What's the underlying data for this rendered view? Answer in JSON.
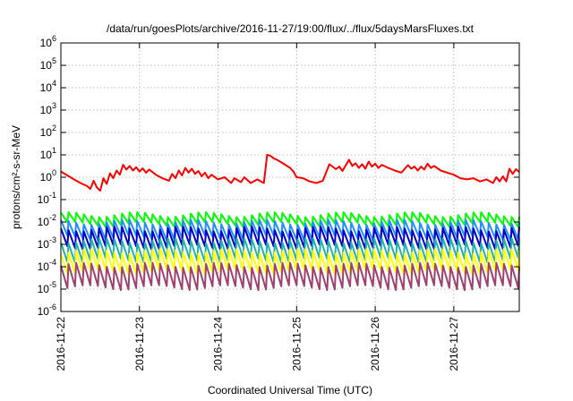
{
  "chart_data": {
    "type": "line",
    "title": "/data/run/goesPlots/archive/2016-11-27/19:00/flux/../flux/5daysMarsFluxes.txt",
    "xlabel": "Coordinated Universal Time (UTC)",
    "ylabel": "protons/cm²-s-sr-MeV",
    "yscale": "log",
    "ylim": [
      1e-06,
      1000000.0
    ],
    "y_tick_exponents": [
      -6,
      -5,
      -4,
      -3,
      -2,
      -1,
      0,
      1,
      2,
      3,
      4,
      5,
      6
    ],
    "xlim": [
      "2016-11-22T00:00",
      "2016-11-27T20:00"
    ],
    "x_ticks": [
      "2016-11-22",
      "2016-11-23",
      "2016-11-24",
      "2016-11-25",
      "2016-11-26",
      "2016-11-27"
    ],
    "grid": true,
    "series_colors": [
      "#ff0000",
      "#00ff00",
      "#1e90ff",
      "#0000cd",
      "#20b2aa",
      "#ffff00",
      "#a0406e"
    ],
    "series": [
      {
        "color": "#ff0000",
        "points": [
          [
            "2016-11-22T00:00",
            1.8
          ],
          [
            "2016-11-22T02:00",
            1.2
          ],
          [
            "2016-11-22T04:00",
            0.8
          ],
          [
            "2016-11-22T06:00",
            0.55
          ],
          [
            "2016-11-22T08:00",
            0.4
          ],
          [
            "2016-11-22T09:00",
            0.3
          ],
          [
            "2016-11-22T10:00",
            0.7
          ],
          [
            "2016-11-22T11:00",
            0.35
          ],
          [
            "2016-11-22T12:00",
            0.25
          ],
          [
            "2016-11-22T13:00",
            0.9
          ],
          [
            "2016-11-22T14:00",
            0.5
          ],
          [
            "2016-11-22T15:00",
            1.5
          ],
          [
            "2016-11-22T16:00",
            0.9
          ],
          [
            "2016-11-22T17:00",
            2.0
          ],
          [
            "2016-11-22T18:00",
            1.3
          ],
          [
            "2016-11-22T19:00",
            3.6
          ],
          [
            "2016-11-22T20:00",
            2.2
          ],
          [
            "2016-11-22T21:00",
            3.2
          ],
          [
            "2016-11-22T22:00",
            2.0
          ],
          [
            "2016-11-22T23:00",
            2.8
          ],
          [
            "2016-11-23T00:00",
            1.8
          ],
          [
            "2016-11-23T01:00",
            2.5
          ],
          [
            "2016-11-23T02:00",
            1.6
          ],
          [
            "2016-11-23T03:00",
            2.2
          ],
          [
            "2016-11-23T05:00",
            1.3
          ],
          [
            "2016-11-23T07:00",
            0.9
          ],
          [
            "2016-11-23T09:00",
            0.7
          ],
          [
            "2016-11-23T10:00",
            1.4
          ],
          [
            "2016-11-23T11:00",
            0.9
          ],
          [
            "2016-11-23T12:00",
            2.0
          ],
          [
            "2016-11-23T13:00",
            1.2
          ],
          [
            "2016-11-23T14:00",
            2.6
          ],
          [
            "2016-11-23T15:00",
            1.6
          ],
          [
            "2016-11-23T16:00",
            2.4
          ],
          [
            "2016-11-23T17:00",
            1.4
          ],
          [
            "2016-11-23T18:00",
            1.9
          ],
          [
            "2016-11-23T19:00",
            1.1
          ],
          [
            "2016-11-23T20:00",
            1.6
          ],
          [
            "2016-11-23T21:00",
            0.9
          ],
          [
            "2016-11-23T22:00",
            1.3
          ],
          [
            "2016-11-24T00:00",
            0.8
          ],
          [
            "2016-11-24T02:00",
            1.0
          ],
          [
            "2016-11-24T04:00",
            0.55
          ],
          [
            "2016-11-24T05:00",
            0.9
          ],
          [
            "2016-11-24T07:00",
            0.6
          ],
          [
            "2016-11-24T08:00",
            1.0
          ],
          [
            "2016-11-24T10:00",
            0.55
          ],
          [
            "2016-11-24T12:00",
            0.8
          ],
          [
            "2016-11-24T14:00",
            0.55
          ],
          [
            "2016-11-24T15:00",
            10.0
          ],
          [
            "2016-11-24T16:00",
            9.0
          ],
          [
            "2016-11-24T17:00",
            7.0
          ],
          [
            "2016-11-24T18:00",
            6.0
          ],
          [
            "2016-11-24T20:00",
            4.0
          ],
          [
            "2016-11-24T22:00",
            2.6
          ],
          [
            "2016-11-24T23:00",
            1.8
          ],
          [
            "2016-11-25T00:00",
            1.0
          ],
          [
            "2016-11-25T02:00",
            0.9
          ],
          [
            "2016-11-25T04:00",
            0.65
          ],
          [
            "2016-11-25T06:00",
            0.55
          ],
          [
            "2016-11-25T08:00",
            0.7
          ],
          [
            "2016-11-25T10:00",
            3.8
          ],
          [
            "2016-11-25T12:00",
            2.3
          ],
          [
            "2016-11-25T13:00",
            3.0
          ],
          [
            "2016-11-25T14:00",
            1.9
          ],
          [
            "2016-11-25T16:00",
            6.0
          ],
          [
            "2016-11-25T17:00",
            3.2
          ],
          [
            "2016-11-25T18:00",
            4.2
          ],
          [
            "2016-11-25T19:00",
            2.6
          ],
          [
            "2016-11-25T20:00",
            3.8
          ],
          [
            "2016-11-25T21:00",
            2.4
          ],
          [
            "2016-11-25T22:00",
            5.0
          ],
          [
            "2016-11-25T23:00",
            3.0
          ],
          [
            "2016-11-26T00:00",
            4.0
          ],
          [
            "2016-11-26T01:00",
            2.6
          ],
          [
            "2016-11-26T02:00",
            3.6
          ],
          [
            "2016-11-26T04:00",
            2.6
          ],
          [
            "2016-11-26T06:00",
            2.0
          ],
          [
            "2016-11-26T08:00",
            1.6
          ],
          [
            "2016-11-26T10:00",
            3.5
          ],
          [
            "2016-11-26T11:00",
            2.4
          ],
          [
            "2016-11-26T12:00",
            3.0
          ],
          [
            "2016-11-26T13:00",
            2.0
          ],
          [
            "2016-11-26T14:00",
            3.0
          ],
          [
            "2016-11-26T15:00",
            2.2
          ],
          [
            "2016-11-26T16:00",
            4.0
          ],
          [
            "2016-11-26T17:00",
            2.6
          ],
          [
            "2016-11-26T18:00",
            3.2
          ],
          [
            "2016-11-26T20:00",
            2.0
          ],
          [
            "2016-11-26T22:00",
            1.6
          ],
          [
            "2016-11-27T00:00",
            1.3
          ],
          [
            "2016-11-27T02:00",
            0.9
          ],
          [
            "2016-11-27T04:00",
            0.8
          ],
          [
            "2016-11-27T06:00",
            0.9
          ],
          [
            "2016-11-27T08:00",
            0.65
          ],
          [
            "2016-11-27T10:00",
            0.8
          ],
          [
            "2016-11-27T12:00",
            0.55
          ],
          [
            "2016-11-27T13:00",
            1.0
          ],
          [
            "2016-11-27T14:00",
            0.65
          ],
          [
            "2016-11-27T15:00",
            1.1
          ],
          [
            "2016-11-27T16:00",
            0.65
          ],
          [
            "2016-11-27T17:00",
            2.4
          ],
          [
            "2016-11-27T18:00",
            1.4
          ],
          [
            "2016-11-27T19:00",
            2.3
          ],
          [
            "2016-11-27T20:00",
            1.7
          ]
        ]
      },
      {
        "color": "#00ff00",
        "band": [
          0.008,
          0.022
        ],
        "cycles": 60
      },
      {
        "color": "#1e90ff",
        "band": [
          0.002,
          0.01
        ],
        "cycles": 60
      },
      {
        "color": "#0000cd",
        "band": [
          0.0008,
          0.005
        ],
        "cycles": 60
      },
      {
        "color": "#20b2aa",
        "band": [
          0.0002,
          0.0015
        ],
        "cycles": 60
      },
      {
        "color": "#ffff00",
        "band": [
          6e-05,
          0.0005
        ],
        "cycles": 60
      },
      {
        "color": "#a0406e",
        "band": [
          1.2e-05,
          0.00012
        ],
        "cycles": 60
      }
    ]
  }
}
